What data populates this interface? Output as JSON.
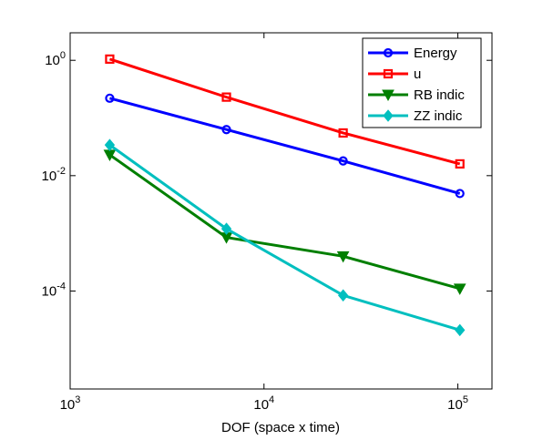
{
  "chart_data": {
    "type": "line",
    "title": "",
    "xlabel": "DOF (space x time)",
    "ylabel": "",
    "x_scale": "log",
    "y_scale": "log",
    "xlim": [
      1000,
      150000
    ],
    "ylim": [
      2e-06,
      3
    ],
    "x_ticks": [
      {
        "value": 1000,
        "base": "10",
        "exp": "3"
      },
      {
        "value": 10000,
        "base": "10",
        "exp": "4"
      },
      {
        "value": 100000,
        "base": "10",
        "exp": "5"
      }
    ],
    "y_ticks": [
      {
        "value": 0.0001,
        "base": "10",
        "exp": "-4"
      },
      {
        "value": 0.01,
        "base": "10",
        "exp": "-2"
      },
      {
        "value": 1,
        "base": "10",
        "exp": "0"
      }
    ],
    "grid": false,
    "legend_position": "top-right",
    "x": [
      1600,
      6400,
      25600,
      102400
    ],
    "series": [
      {
        "name": "Energy",
        "color": "#0000ff",
        "marker": "circle",
        "values": [
          0.22,
          0.063,
          0.018,
          0.0049
        ]
      },
      {
        "name": "u",
        "color": "#ff0000",
        "marker": "square",
        "values": [
          1.05,
          0.23,
          0.055,
          0.016
        ]
      },
      {
        "name": "RB indic",
        "color": "#007f00",
        "marker": "triangle-down",
        "values": [
          0.023,
          0.00085,
          0.0004,
          0.00011
        ]
      },
      {
        "name": "ZZ indic",
        "color": "#00bfbf",
        "marker": "diamond",
        "values": [
          0.034,
          0.0012,
          8.4e-05,
          2.1e-05
        ]
      }
    ]
  }
}
